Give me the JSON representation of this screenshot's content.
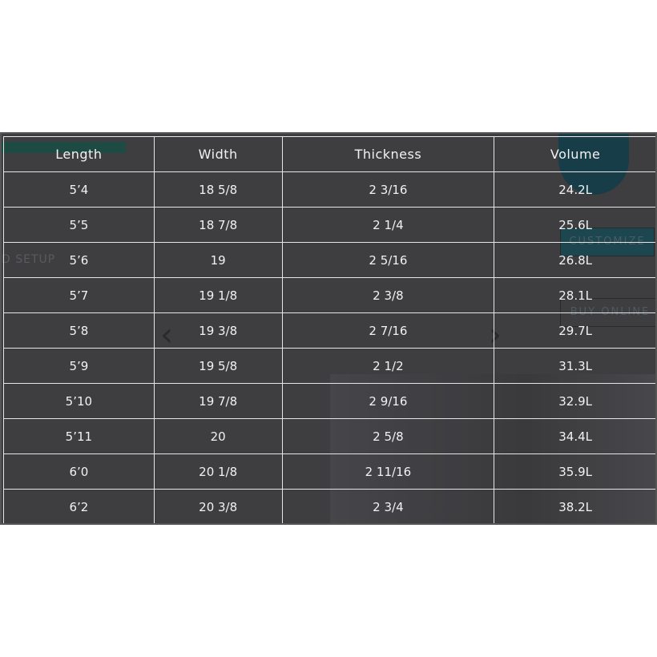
{
  "background": {
    "setup_text": "D SETUP",
    "customize_label": "CUSTOMIZE",
    "buy_online_label": "BUY ONLINE"
  },
  "table": {
    "headers": [
      "Length",
      "Width",
      "Thickness",
      "Volume"
    ],
    "rows": [
      [
        "5’4",
        "18 5/8",
        "2 3/16",
        "24.2L"
      ],
      [
        "5’5",
        "18 7/8",
        "2 1/4",
        "25.6L"
      ],
      [
        "5’6",
        "19",
        "2 5/16",
        "26.8L"
      ],
      [
        "5’7",
        "19 1/8",
        "2 3/8",
        "28.1L"
      ],
      [
        "5’8",
        "19 3/8",
        "2 7/16",
        "29.7L"
      ],
      [
        "5’9",
        "19 5/8",
        "2 1/2",
        "31.3L"
      ],
      [
        "5’10",
        "19 7/8",
        "2 9/16",
        "32.9L"
      ],
      [
        "5’11",
        "20",
        "2 5/8",
        "34.4L"
      ],
      [
        "6’0",
        "20 1/8",
        "2 11/16",
        "35.9L"
      ],
      [
        "6’2",
        "20 3/8",
        "2 3/4",
        "38.2L"
      ]
    ]
  }
}
